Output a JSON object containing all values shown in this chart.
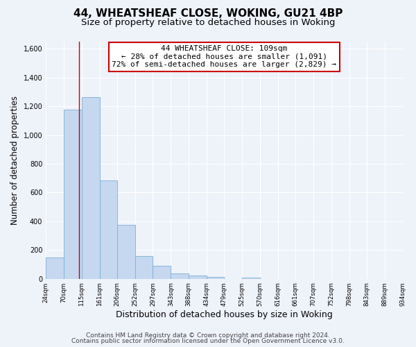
{
  "title_line1": "44, WHEATSHEAF CLOSE, WOKING, GU21 4BP",
  "title_line2": "Size of property relative to detached houses in Woking",
  "xlabel": "Distribution of detached houses by size in Woking",
  "ylabel": "Number of detached properties",
  "bar_values": [
    150,
    1175,
    1265,
    685,
    375,
    160,
    90,
    35,
    25,
    15,
    0,
    10,
    0,
    0,
    0,
    0,
    0,
    0,
    0,
    0
  ],
  "bin_edges": [
    24,
    70,
    115,
    161,
    206,
    252,
    297,
    343,
    388,
    434,
    479,
    525,
    570,
    616,
    661,
    707,
    752,
    798,
    843,
    889,
    934
  ],
  "tick_labels": [
    "24sqm",
    "70sqm",
    "115sqm",
    "161sqm",
    "206sqm",
    "252sqm",
    "297sqm",
    "343sqm",
    "388sqm",
    "434sqm",
    "479sqm",
    "525sqm",
    "570sqm",
    "616sqm",
    "661sqm",
    "707sqm",
    "752sqm",
    "798sqm",
    "843sqm",
    "889sqm",
    "934sqm"
  ],
  "bar_color": "#c5d8f0",
  "bar_edge_color": "#7bafd4",
  "redline_x": 109,
  "ylim": [
    0,
    1650
  ],
  "yticks": [
    0,
    200,
    400,
    600,
    800,
    1000,
    1200,
    1400,
    1600
  ],
  "annotation_title": "44 WHEATSHEAF CLOSE: 109sqm",
  "annotation_line2": "← 28% of detached houses are smaller (1,091)",
  "annotation_line3": "72% of semi-detached houses are larger (2,829) →",
  "footer_line1": "Contains HM Land Registry data © Crown copyright and database right 2024.",
  "footer_line2": "Contains public sector information licensed under the Open Government Licence v3.0.",
  "bg_color": "#eef2f9",
  "grid_color": "#ffffff",
  "annotation_box_color": "#ffffff",
  "annotation_box_edge_color": "#cc0000"
}
